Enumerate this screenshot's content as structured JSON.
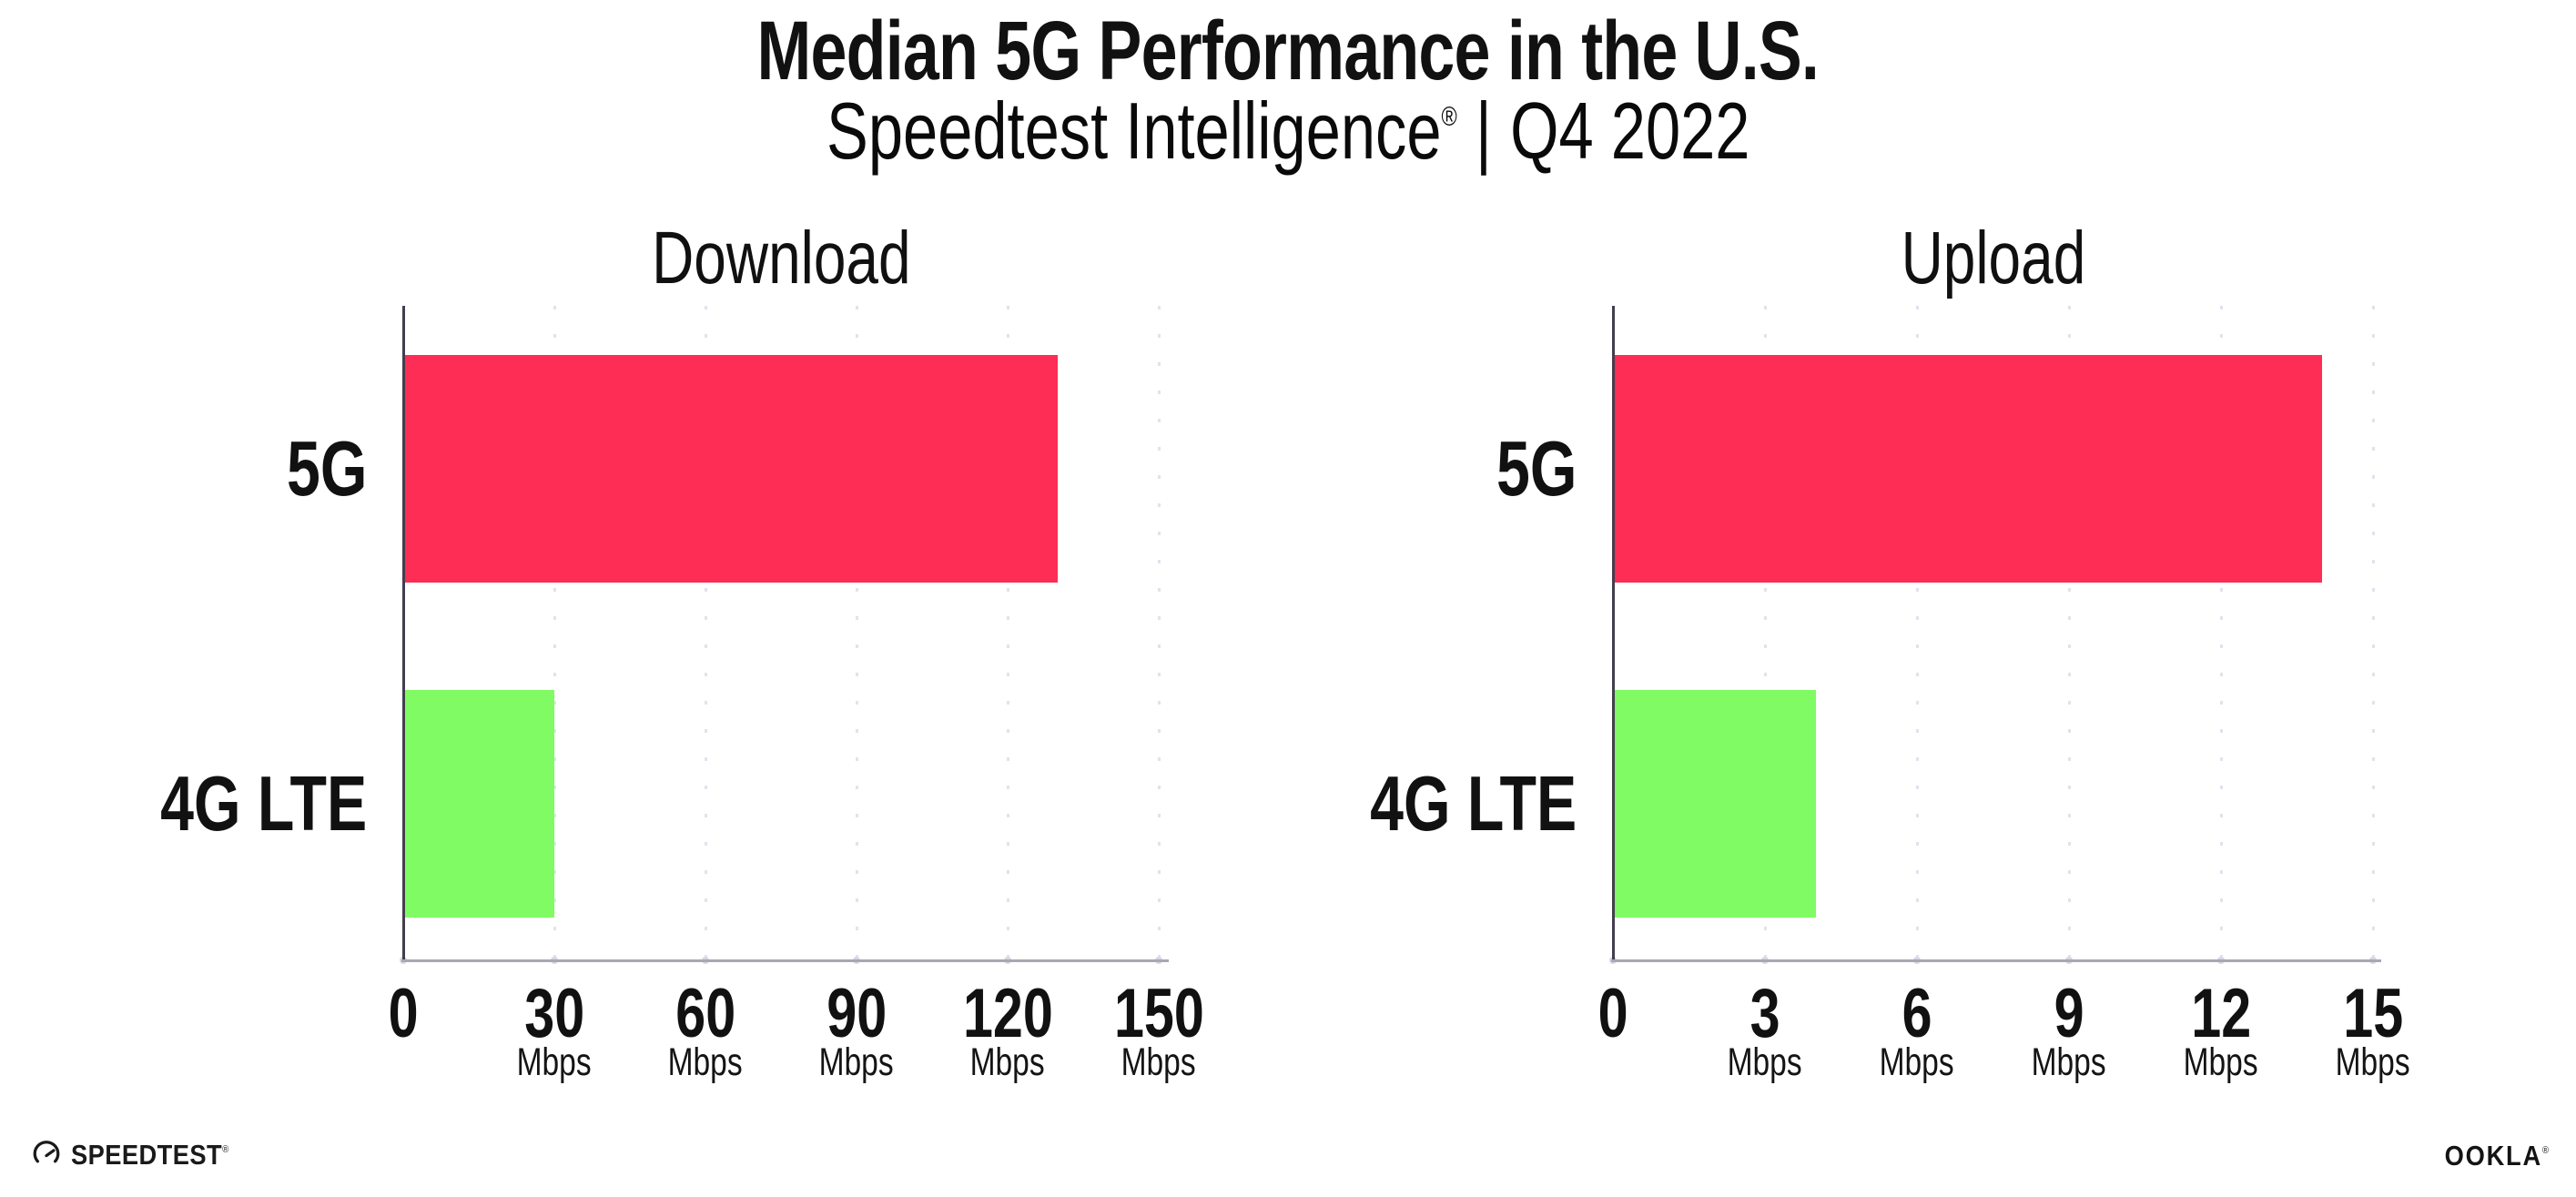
{
  "header": {
    "title": "Median 5G Performance in the U.S.",
    "subtitle_product": "Speedtest Intelligence",
    "subtitle_reg": "®",
    "subtitle_separator": "|",
    "subtitle_period": "Q4 2022"
  },
  "footer": {
    "speedtest_logo_text": "SPEEDTEST",
    "speedtest_reg": "®",
    "ookla_logo_text": "OOKLA",
    "ookla_reg": "®"
  },
  "colors": {
    "bar_5g": "#FD2D55",
    "bar_4g_lte": "#80FB64",
    "y_axis_line": "#433E4E",
    "x_axis_line": "#A8A8B2",
    "grid_dots": "#E2E2EF",
    "text": "#111111"
  },
  "chart_data": [
    {
      "type": "bar",
      "orientation": "horizontal",
      "title": "Download",
      "categories": [
        "5G",
        "4G LTE"
      ],
      "values": [
        130,
        30
      ],
      "unit": "Mbps",
      "xlim": [
        0,
        150
      ],
      "ticks": [
        0,
        30,
        60,
        90,
        120,
        150
      ],
      "grid": "dotted-vertical",
      "legend": "none",
      "bar_colors": [
        "#FD2D55",
        "#80FB64"
      ]
    },
    {
      "type": "bar",
      "orientation": "horizontal",
      "title": "Upload",
      "categories": [
        "5G",
        "4G LTE"
      ],
      "values": [
        14,
        4
      ],
      "unit": "Mbps",
      "xlim": [
        0,
        15
      ],
      "ticks": [
        0,
        3,
        6,
        9,
        12,
        15
      ],
      "grid": "dotted-vertical",
      "legend": "none",
      "bar_colors": [
        "#FD2D55",
        "#80FB64"
      ]
    }
  ]
}
